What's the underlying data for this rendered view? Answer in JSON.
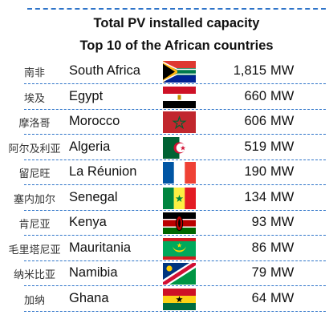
{
  "chart_data": {
    "type": "table",
    "title": "Total PV installed capacity",
    "subtitle": "Top 10 of the African countries",
    "unit": "MW",
    "rows": [
      {
        "zh": "南非",
        "country": "South Africa",
        "value": "1,815",
        "flag": "south-africa-flag-icon"
      },
      {
        "zh": "埃及",
        "country": "Egypt",
        "value": "660",
        "flag": "egypt-flag-icon"
      },
      {
        "zh": "摩洛哥",
        "country": "Morocco",
        "value": "606",
        "flag": "morocco-flag-icon"
      },
      {
        "zh": "阿尔及利亚",
        "country": "Algeria",
        "value": "519",
        "flag": "algeria-flag-icon"
      },
      {
        "zh": "留尼旺",
        "country": "La Réunion",
        "value": "190",
        "flag": "france-flag-icon"
      },
      {
        "zh": "塞内加尔",
        "country": "Senegal",
        "value": "134",
        "flag": "senegal-flag-icon"
      },
      {
        "zh": "肯尼亚",
        "country": "Kenya",
        "value": "93",
        "flag": "kenya-flag-icon"
      },
      {
        "zh": "毛里塔尼亚",
        "country": "Mauritania",
        "value": "86",
        "flag": "mauritania-flag-icon"
      },
      {
        "zh": "纳米比亚",
        "country": "Namibia",
        "value": "79",
        "flag": "namibia-flag-icon"
      },
      {
        "zh": "加纳",
        "country": "Ghana",
        "value": "64",
        "flag": "ghana-flag-icon"
      }
    ],
    "colors": {
      "separator": "#2e74c9"
    }
  }
}
